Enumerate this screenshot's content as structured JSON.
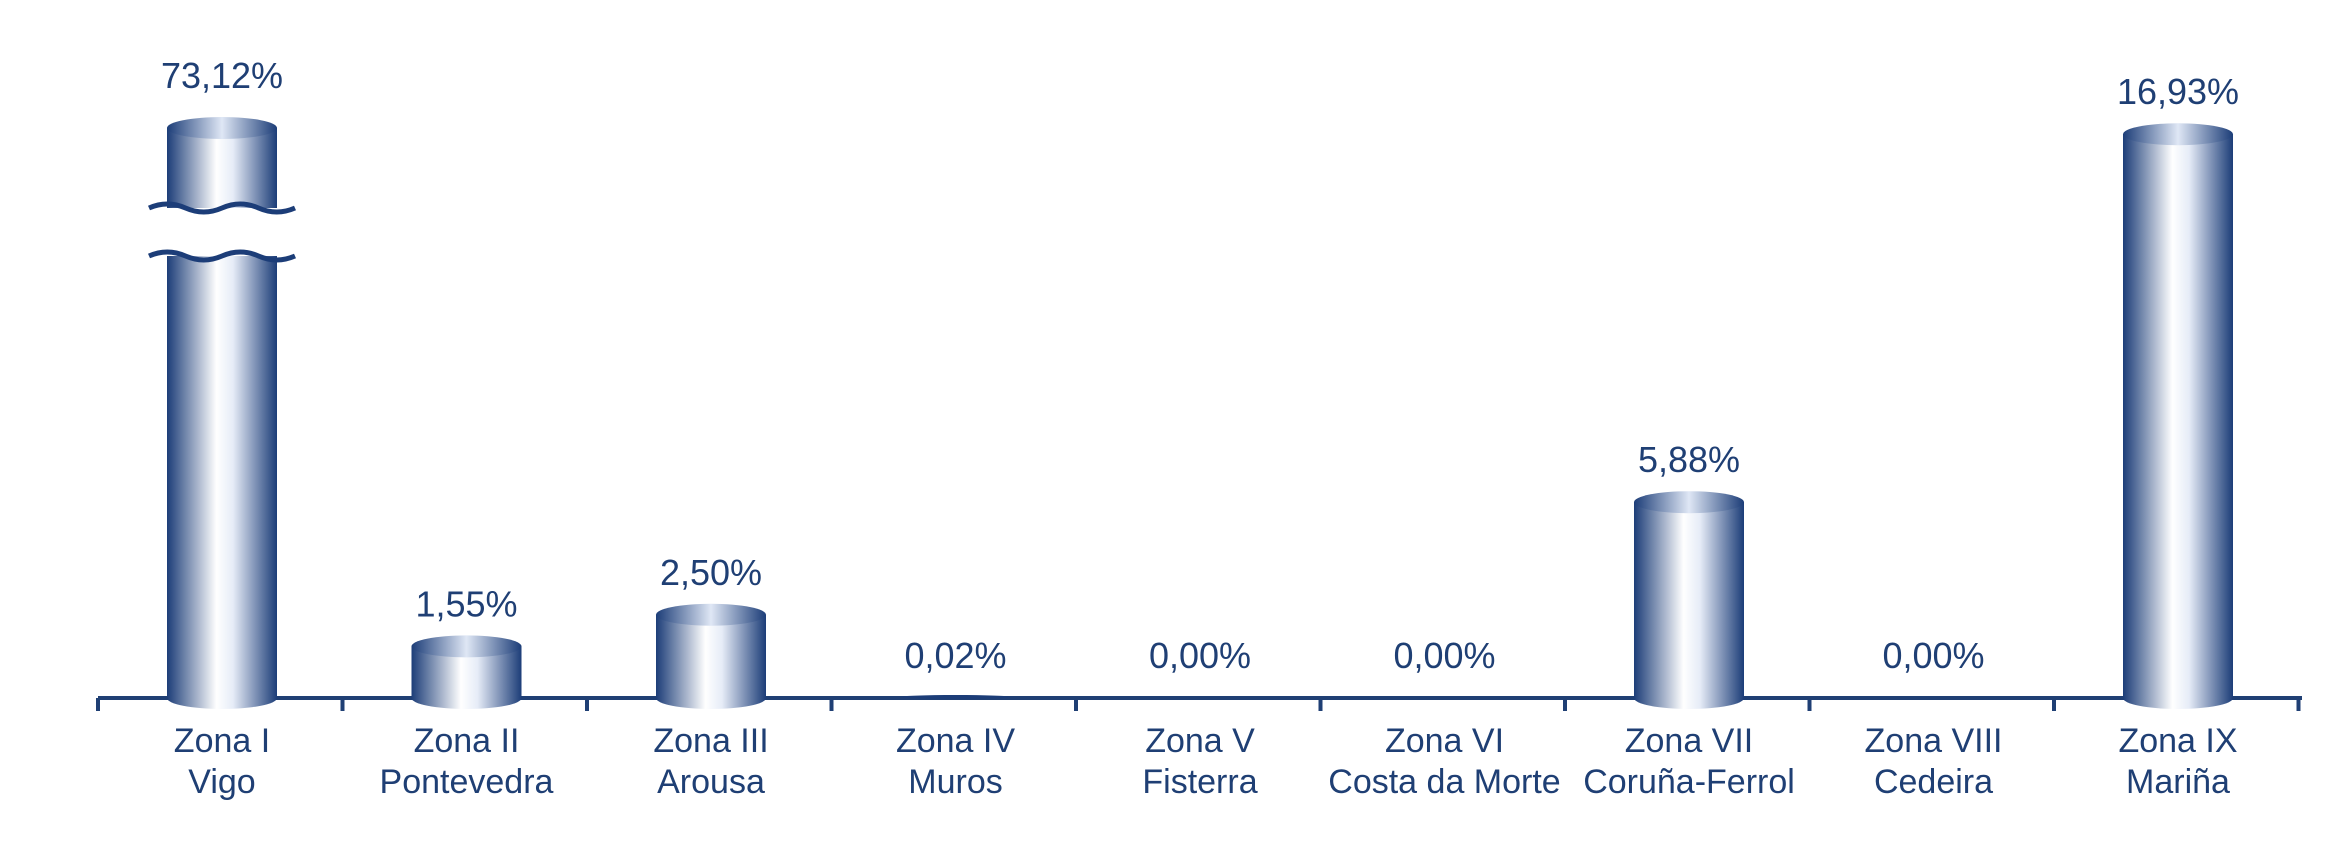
{
  "chart_data": {
    "type": "bar",
    "title": "",
    "xlabel": "",
    "ylabel": "",
    "categories": [
      [
        "Zona I",
        "Vigo"
      ],
      [
        "Zona II",
        "Pontevedra"
      ],
      [
        "Zona III",
        "Arousa"
      ],
      [
        "Zona IV",
        "Muros"
      ],
      [
        "Zona V",
        "Fisterra"
      ],
      [
        "Zona VI",
        "Costa da Morte"
      ],
      [
        "Zona VII",
        "Coruña-Ferrol"
      ],
      [
        "Zona VIII",
        "Cedeira"
      ],
      [
        "Zona IX",
        "Mariña"
      ]
    ],
    "values": [
      73.12,
      1.55,
      2.5,
      0.02,
      0.0,
      0.0,
      5.88,
      0.0,
      16.93
    ],
    "value_labels": [
      "73,12%",
      "1,55%",
      "2,50%",
      "0,02%",
      "0,00%",
      "0,00%",
      "5,88%",
      "0,00%",
      "16,93%"
    ],
    "axis_break_on": "Zona I",
    "grid": false,
    "legend": "none",
    "colors": {
      "bar_dark": "#1c3d78",
      "bar_light": "#ffffff",
      "axis": "#1f3f74",
      "text": "#1f3f74"
    }
  }
}
